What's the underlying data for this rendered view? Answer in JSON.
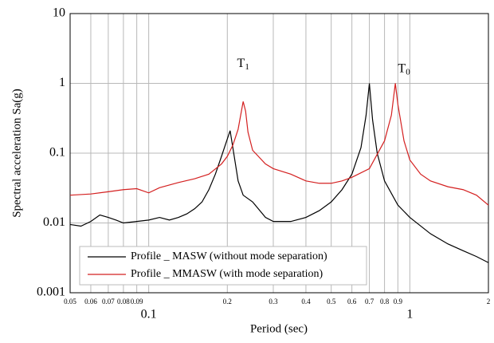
{
  "chart_data": {
    "type": "line",
    "xscale": "log",
    "yscale": "log",
    "grid": true,
    "legend": "lower left",
    "x_label": "Period (sec)",
    "y_label": "Spectral acceleration Sa(g)",
    "xlim": [
      0.05,
      2
    ],
    "ylim": [
      0.001,
      10
    ],
    "xticks": [
      0.1,
      1
    ],
    "xticks_minor": [
      0.05,
      0.06,
      0.07,
      0.08,
      0.09,
      0.2,
      0.3,
      0.4,
      0.5,
      0.6,
      0.7,
      0.8,
      0.9,
      2
    ],
    "yticks": [
      0.001,
      0.01,
      0.1,
      1,
      10
    ],
    "annotations": [
      {
        "text": "T",
        "subscript": "1",
        "x": 0.23,
        "y": 1.9
      },
      {
        "text": "T",
        "subscript": "0",
        "x": 0.95,
        "y": 1.6
      }
    ],
    "series": [
      {
        "name": "Profile _ MASW (without mode separation)",
        "color": "#000000",
        "x": [
          0.05,
          0.055,
          0.06,
          0.065,
          0.07,
          0.075,
          0.08,
          0.09,
          0.1,
          0.11,
          0.12,
          0.13,
          0.14,
          0.15,
          0.16,
          0.17,
          0.18,
          0.19,
          0.2,
          0.205,
          0.21,
          0.22,
          0.23,
          0.25,
          0.28,
          0.3,
          0.35,
          0.4,
          0.45,
          0.5,
          0.55,
          0.6,
          0.65,
          0.68,
          0.7,
          0.72,
          0.75,
          0.8,
          0.9,
          1.0,
          1.2,
          1.4,
          1.6,
          1.8,
          2.0
        ],
        "values": [
          0.0095,
          0.009,
          0.0105,
          0.013,
          0.012,
          0.011,
          0.01,
          0.0105,
          0.011,
          0.012,
          0.011,
          0.012,
          0.0135,
          0.016,
          0.02,
          0.03,
          0.05,
          0.09,
          0.16,
          0.21,
          0.12,
          0.04,
          0.025,
          0.02,
          0.012,
          0.0105,
          0.0105,
          0.012,
          0.015,
          0.02,
          0.03,
          0.05,
          0.12,
          0.35,
          1.0,
          0.3,
          0.1,
          0.04,
          0.018,
          0.012,
          0.007,
          0.005,
          0.004,
          0.0033,
          0.0027
        ]
      },
      {
        "name": "Profile _ MMASW (with mode separation)",
        "color": "#d42020",
        "x": [
          0.05,
          0.06,
          0.07,
          0.08,
          0.09,
          0.1,
          0.11,
          0.13,
          0.15,
          0.17,
          0.19,
          0.2,
          0.21,
          0.22,
          0.23,
          0.235,
          0.24,
          0.25,
          0.28,
          0.3,
          0.35,
          0.4,
          0.45,
          0.5,
          0.55,
          0.6,
          0.7,
          0.8,
          0.85,
          0.88,
          0.9,
          0.95,
          1.0,
          1.1,
          1.2,
          1.4,
          1.6,
          1.8,
          2.0
        ],
        "values": [
          0.025,
          0.026,
          0.028,
          0.03,
          0.031,
          0.027,
          0.032,
          0.038,
          0.043,
          0.05,
          0.07,
          0.09,
          0.13,
          0.22,
          0.55,
          0.4,
          0.2,
          0.11,
          0.07,
          0.06,
          0.05,
          0.04,
          0.037,
          0.037,
          0.04,
          0.045,
          0.06,
          0.15,
          0.35,
          1.0,
          0.5,
          0.15,
          0.08,
          0.05,
          0.04,
          0.033,
          0.03,
          0.025,
          0.018
        ]
      }
    ]
  }
}
